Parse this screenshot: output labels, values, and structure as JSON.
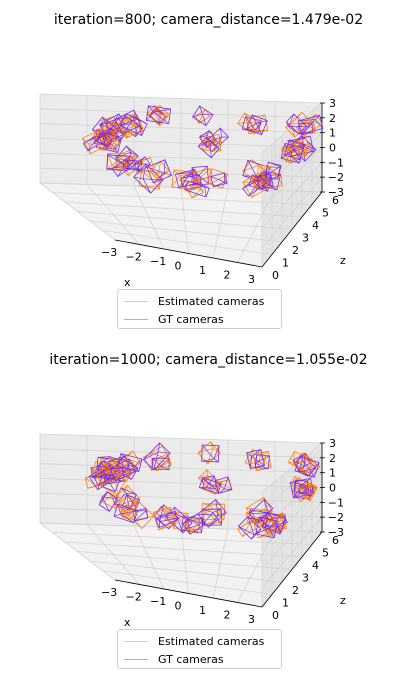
{
  "chart_data": [
    {
      "type": "scatter",
      "subtype": "3d-camera-frustums",
      "title": "iteration=800; camera_distance=1.479e-02",
      "xlabel": "x",
      "ylabel": "",
      "zlabel": "z",
      "xlim": [
        -3,
        3
      ],
      "ylim": [
        -3,
        3
      ],
      "zlim": [
        0,
        6
      ],
      "x_ticks": [
        "−3",
        "−2",
        "−1",
        "0",
        "1",
        "2",
        "3"
      ],
      "y_ticks": [
        "3",
        "2",
        "1",
        "0",
        "−1",
        "−2",
        "−3"
      ],
      "z_ticks": [
        "0",
        "1",
        "2",
        "3",
        "4",
        "5",
        "6"
      ],
      "grid": true,
      "legend_position": "bottom-center",
      "series": [
        {
          "name": "Estimated cameras",
          "color": "#ff7f0e"
        },
        {
          "name": "GT cameras",
          "color": "#7b2be2"
        }
      ]
    },
    {
      "type": "scatter",
      "subtype": "3d-camera-frustums",
      "title": "iteration=1000; camera_distance=1.055e-02",
      "xlabel": "x",
      "ylabel": "",
      "zlabel": "z",
      "xlim": [
        -3,
        3
      ],
      "ylim": [
        -3,
        3
      ],
      "zlim": [
        0,
        6
      ],
      "x_ticks": [
        "−3",
        "−2",
        "−1",
        "0",
        "1",
        "2",
        "3"
      ],
      "y_ticks": [
        "3",
        "2",
        "1",
        "0",
        "−1",
        "−2",
        "−3"
      ],
      "z_ticks": [
        "0",
        "1",
        "2",
        "3",
        "4",
        "5",
        "6"
      ],
      "grid": true,
      "legend_position": "bottom-center",
      "series": [
        {
          "name": "Estimated cameras",
          "color": "#ff7f0e"
        },
        {
          "name": "GT cameras",
          "color": "#7b2be2"
        }
      ]
    }
  ]
}
